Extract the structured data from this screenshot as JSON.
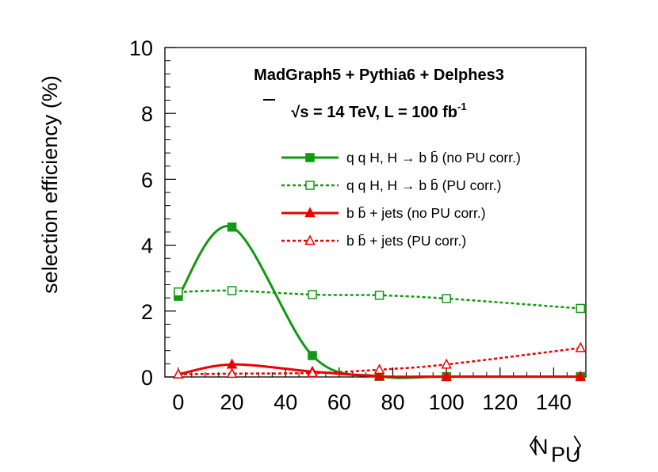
{
  "chart_data": {
    "type": "line",
    "header_line1": "MadGraph5 + Pythia6 + Delphes3",
    "header_line2": {
      "sqrt_symbol": "√",
      "s_label": "s",
      "rest": " = 14 TeV, L = 100 fb",
      "superscript": "-1"
    },
    "ylabel": "selection efficiency (%)",
    "xlabel": {
      "open": "〈",
      "main": "N",
      "sub": "PU",
      "close": "〉"
    },
    "xlim": [
      -5,
      152
    ],
    "ylim": [
      0,
      10
    ],
    "x_ticks": [
      "0",
      "20",
      "40",
      "60",
      "80",
      "100",
      "120",
      "140"
    ],
    "y_ticks": [
      "0",
      "2",
      "4",
      "6",
      "8",
      "10"
    ],
    "x": [
      0,
      20,
      50,
      75,
      100,
      150
    ],
    "series": [
      {
        "name": "qqH_noPU",
        "legend_label": "q q H, H → b b̄  (no PU corr.)",
        "color": "#119911",
        "linestyle": "solid",
        "marker": "square-filled",
        "values": [
          2.45,
          4.55,
          0.65,
          0.02,
          0.01,
          0.01
        ]
      },
      {
        "name": "qqH_PU",
        "legend_label": "q q H, H → b b̄  (PU corr.)",
        "color": "#119911",
        "linestyle": "dotted",
        "marker": "square-open",
        "values": [
          2.58,
          2.62,
          2.5,
          2.48,
          2.38,
          2.08
        ]
      },
      {
        "name": "bb_noPU",
        "legend_label": "b b̄ + jets  (no PU corr.)",
        "color": "#ee0000",
        "linestyle": "solid",
        "marker": "triangle-filled",
        "values": [
          0.08,
          0.38,
          0.16,
          0.02,
          0.01,
          0.01
        ]
      },
      {
        "name": "bb_PU",
        "legend_label": "b b̄ + jets  (PU corr.)",
        "color": "#ee0000",
        "linestyle": "dotted",
        "marker": "triangle-open",
        "values": [
          0.08,
          0.1,
          0.12,
          0.22,
          0.38,
          0.88
        ]
      }
    ],
    "legend_position": "right"
  }
}
